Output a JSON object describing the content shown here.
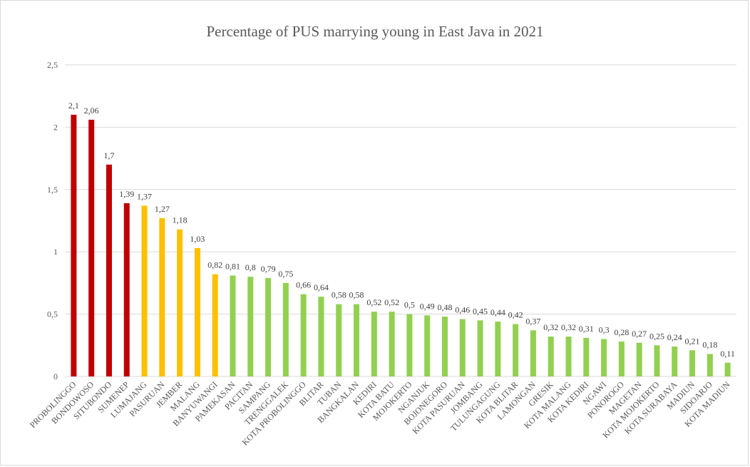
{
  "chart_data": {
    "type": "bar",
    "title": "Percentage of PUS marrying young in East Java in 2021",
    "xlabel": "",
    "ylabel": "",
    "ylim": [
      0,
      2.5
    ],
    "yticks": [
      "0",
      "0,5",
      "1",
      "1,5",
      "2",
      "2,5"
    ],
    "ytick_values": [
      0,
      0.5,
      1,
      1.5,
      2,
      2.5
    ],
    "grid": true,
    "legend": "none",
    "categories": [
      "PROBOLINGGO",
      "BONDOWOSO",
      "SITUBONDO",
      "SUMENEP",
      "LUMAJANG",
      "PASURUAN",
      "JEMBER",
      "MALANG",
      "BANYUWANGI",
      "PAMEKASAN",
      "PACITAN",
      "SAMPANG",
      "TRENGGALEK",
      "KOTA PROBOLINGGO",
      "BLITAR",
      "TUBAN",
      "BANGKALAN",
      "KEDIRI",
      "KOTA BATU",
      "MOJOKERTO",
      "NGANJUK",
      "BOJONEGORO",
      "KOTA PASURUAN",
      "JOMBANG",
      "TULUNGAGUNG",
      "KOTA BLITAR",
      "LAMONGAN",
      "GRESIK",
      "KOTA MALANG",
      "KOTA KEDIRI",
      "NGAWI",
      "PONOROGO",
      "MAGETAN",
      "KOTA MOJOKERTO",
      "KOTA SURABAYA",
      "MADIUN",
      "SIDOARJO",
      "KOTA MADIUN"
    ],
    "values": [
      2.1,
      2.06,
      1.7,
      1.39,
      1.37,
      1.27,
      1.18,
      1.03,
      0.82,
      0.81,
      0.8,
      0.79,
      0.75,
      0.66,
      0.64,
      0.58,
      0.58,
      0.52,
      0.52,
      0.5,
      0.49,
      0.48,
      0.46,
      0.45,
      0.44,
      0.42,
      0.37,
      0.32,
      0.32,
      0.31,
      0.3,
      0.28,
      0.27,
      0.25,
      0.24,
      0.21,
      0.18,
      0.11
    ],
    "data_labels": [
      "2,1",
      "2,06",
      "1,7",
      "1,39",
      "1,37",
      "1,27",
      "1,18",
      "1,03",
      "0,82",
      "0,81",
      "0,8",
      "0,79",
      "0,75",
      "0,66",
      "0,64",
      "0,58",
      "0,58",
      "0,52",
      "0,52",
      "0,5",
      "0,49",
      "0,48",
      "0,46",
      "0,45",
      "0,44",
      "0,42",
      "0,37",
      "0,32",
      "0,32",
      "0,31",
      "0,3",
      "0,28",
      "0,27",
      "0,25",
      "0,24",
      "0,21",
      "0,18",
      "0,11"
    ],
    "bar_colors": [
      "#c00000",
      "#c00000",
      "#c00000",
      "#c00000",
      "#ffc000",
      "#ffc000",
      "#ffc000",
      "#ffc000",
      "#ffc000",
      "#92d050",
      "#92d050",
      "#92d050",
      "#92d050",
      "#92d050",
      "#92d050",
      "#92d050",
      "#92d050",
      "#92d050",
      "#92d050",
      "#92d050",
      "#92d050",
      "#92d050",
      "#92d050",
      "#92d050",
      "#92d050",
      "#92d050",
      "#92d050",
      "#92d050",
      "#92d050",
      "#92d050",
      "#92d050",
      "#92d050",
      "#92d050",
      "#92d050",
      "#92d050",
      "#92d050",
      "#92d050",
      "#92d050"
    ]
  }
}
